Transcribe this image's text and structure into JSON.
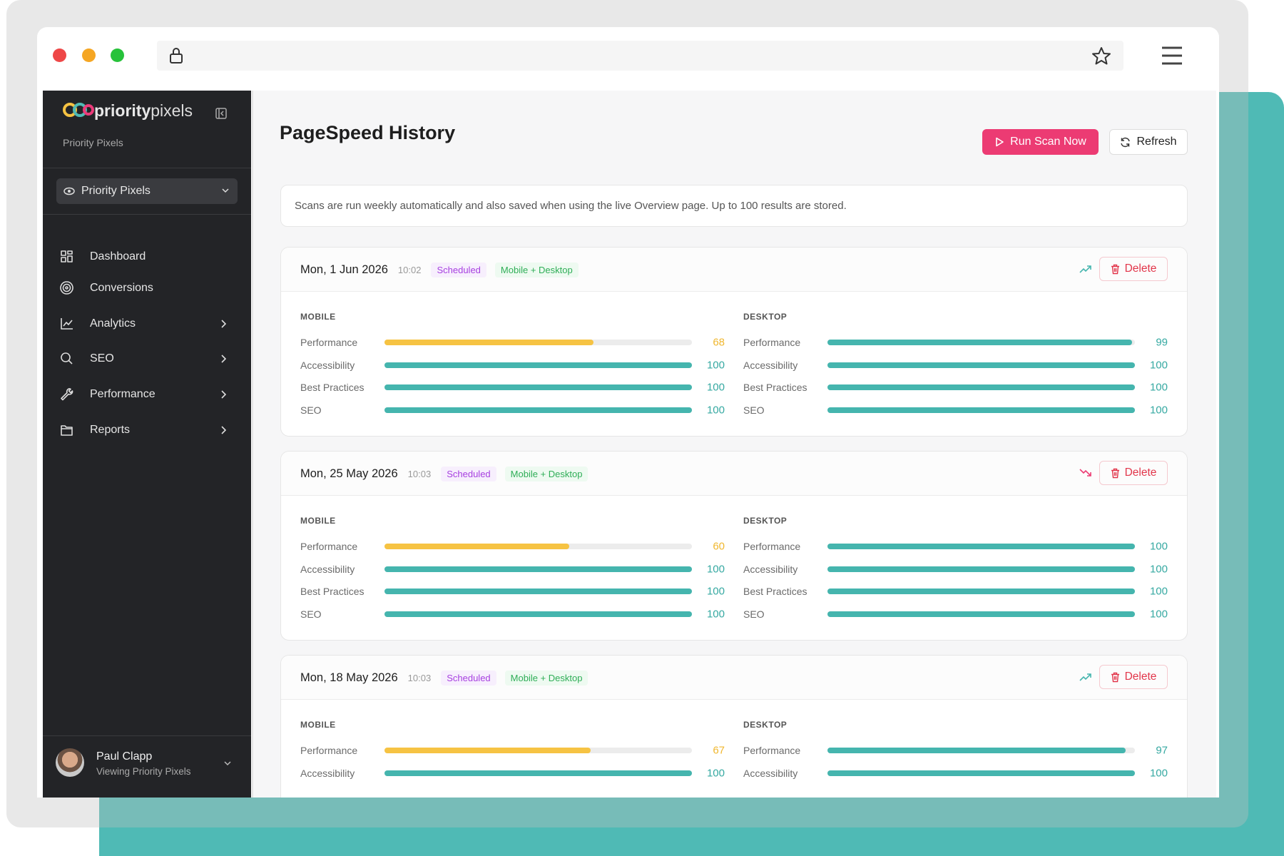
{
  "sidebar": {
    "brand_bold": "priority",
    "brand_light": "pixels",
    "subtitle": "Priority Pixels",
    "site_selector": "Priority Pixels",
    "nav": [
      {
        "label": "Dashboard",
        "expandable": false
      },
      {
        "label": "Conversions",
        "expandable": false
      },
      {
        "label": "Analytics",
        "expandable": true
      },
      {
        "label": "SEO",
        "expandable": true
      },
      {
        "label": "Performance",
        "expandable": true
      },
      {
        "label": "Reports",
        "expandable": true
      }
    ],
    "user": {
      "name": "Paul Clapp",
      "status": "Viewing Priority Pixels"
    }
  },
  "main": {
    "title": "PageSpeed History",
    "primary_button": "Run Scan Now",
    "secondary_button": "Refresh",
    "notice": "Scans are run weekly automatically and also saved when using the live Overview page. Up to 100 results are stored.",
    "score_max": 100,
    "palette": {
      "good": "#45b5ae",
      "average": "#f6c343"
    },
    "score_text": {
      "good": "#36a9a2",
      "average": "#f0b72f"
    },
    "scans": [
      {
        "date": "Mon, 1 Jun 2026",
        "time": "10:02",
        "source": "Scheduled",
        "devices": "Mobile + Desktop",
        "trend": "up",
        "action": "Delete",
        "groups": [
          {
            "name": "MOBILE",
            "metrics": [
              {
                "label": "Performance",
                "score": 68,
                "rating": "average"
              },
              {
                "label": "Accessibility",
                "score": 100,
                "rating": "good"
              },
              {
                "label": "Best Practices",
                "score": 100,
                "rating": "good"
              },
              {
                "label": "SEO",
                "score": 100,
                "rating": "good"
              }
            ]
          },
          {
            "name": "DESKTOP",
            "metrics": [
              {
                "label": "Performance",
                "score": 99,
                "rating": "good"
              },
              {
                "label": "Accessibility",
                "score": 100,
                "rating": "good"
              },
              {
                "label": "Best Practices",
                "score": 100,
                "rating": "good"
              },
              {
                "label": "SEO",
                "score": 100,
                "rating": "good"
              }
            ]
          }
        ]
      },
      {
        "date": "Mon, 25 May 2026",
        "time": "10:03",
        "source": "Scheduled",
        "devices": "Mobile + Desktop",
        "trend": "down",
        "action": "Delete",
        "groups": [
          {
            "name": "MOBILE",
            "metrics": [
              {
                "label": "Performance",
                "score": 60,
                "rating": "average"
              },
              {
                "label": "Accessibility",
                "score": 100,
                "rating": "good"
              },
              {
                "label": "Best Practices",
                "score": 100,
                "rating": "good"
              },
              {
                "label": "SEO",
                "score": 100,
                "rating": "good"
              }
            ]
          },
          {
            "name": "DESKTOP",
            "metrics": [
              {
                "label": "Performance",
                "score": 100,
                "rating": "good"
              },
              {
                "label": "Accessibility",
                "score": 100,
                "rating": "good"
              },
              {
                "label": "Best Practices",
                "score": 100,
                "rating": "good"
              },
              {
                "label": "SEO",
                "score": 100,
                "rating": "good"
              }
            ]
          }
        ]
      },
      {
        "date": "Mon, 18 May 2026",
        "time": "10:03",
        "source": "Scheduled",
        "devices": "Mobile + Desktop",
        "trend": "up",
        "action": "Delete",
        "groups": [
          {
            "name": "MOBILE",
            "metrics": [
              {
                "label": "Performance",
                "score": 67,
                "rating": "average"
              },
              {
                "label": "Accessibility",
                "score": 100,
                "rating": "good"
              }
            ]
          },
          {
            "name": "DESKTOP",
            "metrics": [
              {
                "label": "Performance",
                "score": 97,
                "rating": "good"
              },
              {
                "label": "Accessibility",
                "score": 100,
                "rating": "good"
              }
            ]
          }
        ]
      }
    ]
  }
}
